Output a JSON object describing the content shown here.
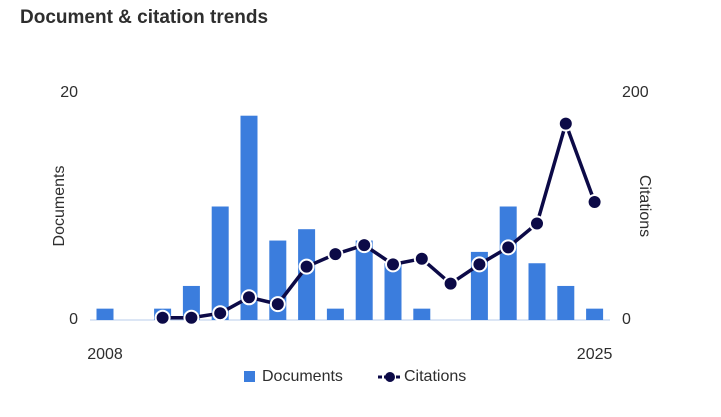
{
  "chart_data": {
    "type": "bar-line",
    "title": "Document & citation trends",
    "categories": [
      "2008",
      null,
      null,
      null,
      null,
      null,
      null,
      null,
      null,
      null,
      null,
      null,
      null,
      null,
      null,
      null,
      null,
      "2025"
    ],
    "series": [
      {
        "name": "Documents",
        "type": "bar",
        "color": "#3b7ddd",
        "values": [
          1,
          0,
          1,
          3,
          10,
          18,
          7,
          8,
          1,
          7,
          5,
          1,
          0,
          6,
          10,
          5,
          3,
          1
        ]
      },
      {
        "name": "Citations",
        "type": "line",
        "axis": "y2",
        "color": "#0c0a47",
        "values": [
          null,
          null,
          2,
          2,
          6,
          20,
          14,
          47,
          58,
          66,
          49,
          54,
          32,
          49,
          64,
          85,
          173,
          104
        ]
      }
    ],
    "ylabel": "Documents",
    "y2label": "Citations",
    "ylim": [
      0,
      20
    ],
    "yticks": [
      0,
      20
    ],
    "y2lim": [
      0,
      200
    ],
    "y2ticks": [
      0,
      200
    ]
  }
}
